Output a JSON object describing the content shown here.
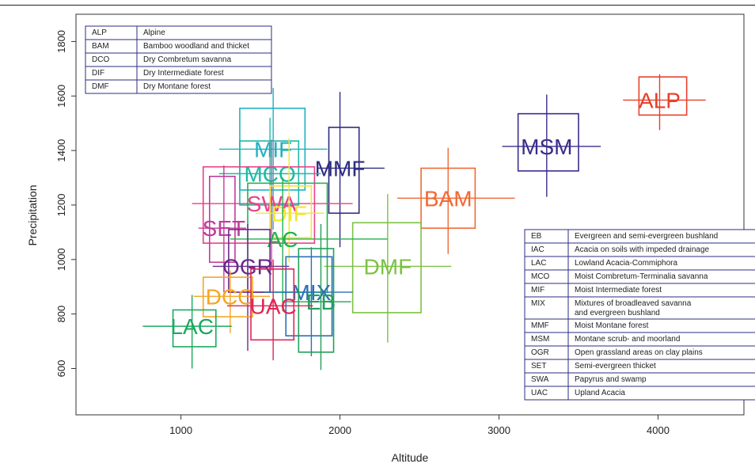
{
  "chart_data": {
    "type": "scatter",
    "xlabel": "Altitude",
    "ylabel": "Precipitation",
    "xlim": [
      340,
      4540
    ],
    "ylim": [
      430,
      1900
    ],
    "xticks": [
      "1000",
      "2000",
      "3000",
      "4000"
    ],
    "yticks": [
      "600",
      "800",
      "1000",
      "1200",
      "1400",
      "1600",
      "1800"
    ],
    "grid": false,
    "legend_placement": "top-left and lower-right tables",
    "points": [
      {
        "code": "ALP",
        "color": "#E8412C",
        "x": 4010,
        "y": 1585,
        "box_x": [
          3880,
          4180
        ],
        "box_y": [
          1530,
          1670
        ],
        "whisker_x": [
          3780,
          4300
        ],
        "whisker_y": [
          1475,
          1680
        ]
      },
      {
        "code": "MSM",
        "color": "#3A2D8C",
        "x": 3300,
        "y": 1415,
        "box_x": [
          3120,
          3500
        ],
        "box_y": [
          1325,
          1535
        ],
        "whisker_x": [
          3020,
          3640
        ],
        "whisker_y": [
          1230,
          1605
        ]
      },
      {
        "code": "BAM",
        "color": "#F06A35",
        "x": 2680,
        "y": 1225,
        "box_x": [
          2510,
          2850
        ],
        "box_y": [
          1115,
          1335
        ],
        "whisker_x": [
          2360,
          3100
        ],
        "whisker_y": [
          1020,
          1410
        ]
      },
      {
        "code": "DMF",
        "color": "#7CC242",
        "x": 2300,
        "y": 975,
        "box_x": [
          2080,
          2510
        ],
        "box_y": [
          805,
          1135
        ],
        "whisker_x": [
          1900,
          2700
        ],
        "whisker_y": [
          695,
          1240
        ]
      },
      {
        "code": "MMF",
        "color": "#2E2C82",
        "x": 2000,
        "y": 1335,
        "box_x": [
          1930,
          2120
        ],
        "box_y": [
          1170,
          1485
        ],
        "whisker_x": [
          1860,
          2280
        ],
        "whisker_y": [
          1045,
          1615
        ]
      },
      {
        "code": "MIF",
        "color": "#1FB0C2",
        "x": 1580,
        "y": 1405,
        "box_x": [
          1370,
          1780
        ],
        "box_y": [
          1255,
          1555
        ],
        "whisker_x": [
          1240,
          1920
        ],
        "whisker_y": [
          1110,
          1630
        ]
      },
      {
        "code": "MCO",
        "color": "#1EB8A6",
        "x": 1560,
        "y": 1315,
        "box_x": [
          1370,
          1740
        ],
        "box_y": [
          1200,
          1435
        ],
        "whisker_x": [
          1240,
          1880
        ],
        "whisker_y": [
          1100,
          1520
        ]
      },
      {
        "code": "SWA",
        "color": "#E8418A",
        "x": 1570,
        "y": 1205,
        "box_x": [
          1140,
          1840
        ],
        "box_y": [
          1060,
          1340
        ],
        "whisker_x": [
          1070,
          2080
        ],
        "whisker_y": [
          960,
          1440
        ]
      },
      {
        "code": "DIF",
        "color": "#F2E530",
        "x": 1680,
        "y": 1170,
        "box_x": [
          1560,
          1820
        ],
        "box_y": [
          1080,
          1270
        ],
        "whisker_x": [
          1470,
          1900
        ],
        "whisker_y": [
          990,
          1445
        ]
      },
      {
        "code": "SET",
        "color": "#C23C9B",
        "x": 1270,
        "y": 1115,
        "box_x": [
          1180,
          1340
        ],
        "box_y": [
          990,
          1305
        ],
        "whisker_x": [
          1110,
          1410
        ],
        "whisker_y": [
          880,
          1345
        ]
      },
      {
        "code": "AC",
        "color": "#22B14C",
        "x": 1640,
        "y": 1075,
        "box_x": [
          1420,
          1920
        ],
        "box_y": [
          880,
          1280
        ],
        "whisker_x": [
          1310,
          2300
        ],
        "whisker_y": [
          810,
          1300
        ]
      },
      {
        "code": "OGR",
        "color": "#6A2A8A",
        "x": 1420,
        "y": 975,
        "box_x": [
          1300,
          1560
        ],
        "box_y": [
          880,
          1110
        ],
        "whisker_x": [
          1200,
          1680
        ],
        "whisker_y": [
          665,
          1130
        ]
      },
      {
        "code": "DCO",
        "color": "#F5A623",
        "x": 1310,
        "y": 865,
        "box_x": [
          1140,
          1450
        ],
        "box_y": [
          790,
          935
        ],
        "whisker_x": [
          1080,
          1560
        ],
        "whisker_y": [
          730,
          960
        ]
      },
      {
        "code": "MIX",
        "color": "#2A6FB8",
        "x": 1820,
        "y": 880,
        "box_x": [
          1660,
          1950
        ],
        "box_y": [
          720,
          1010
        ],
        "whisker_x": [
          1520,
          2080
        ],
        "whisker_y": [
          645,
          1045
        ]
      },
      {
        "code": "EB",
        "color": "#22A05A",
        "x": 1880,
        "y": 845,
        "box_x": [
          1740,
          1960
        ],
        "box_y": [
          660,
          1040
        ],
        "whisker_x": [
          1650,
          2070
        ],
        "whisker_y": [
          595,
          1130
        ]
      },
      {
        "code": "UAC",
        "color": "#E02654",
        "x": 1580,
        "y": 830,
        "box_x": [
          1440,
          1710
        ],
        "box_y": [
          705,
          965
        ],
        "whisker_x": [
          1290,
          1830
        ],
        "whisker_y": [
          630,
          1000
        ]
      },
      {
        "code": "LAC",
        "color": "#1BAA5E",
        "x": 1070,
        "y": 755,
        "box_x": [
          950,
          1220
        ],
        "box_y": [
          680,
          815
        ],
        "whisker_x": [
          760,
          1320
        ],
        "whisker_y": [
          600,
          870
        ]
      }
    ]
  },
  "legend_top": [
    [
      "ALP",
      "Alpine"
    ],
    [
      "BAM",
      "Bamboo woodland and thicket"
    ],
    [
      "DCO",
      "Dry Combretum savanna"
    ],
    [
      "DIF",
      "Dry Intermediate forest"
    ],
    [
      "DMF",
      "Dry Montane forest"
    ]
  ],
  "legend_bottom": [
    [
      "EB",
      "Evergreen and semi-evergreen bushland"
    ],
    [
      "IAC",
      "Acacia on soils with impeded drainage"
    ],
    [
      "LAC",
      "Lowland Acacia-Commiphora"
    ],
    [
      "MCO",
      "Moist Combretum-Terminalia savanna"
    ],
    [
      "MIF",
      "Moist Intermediate forest"
    ],
    [
      "MIX",
      "Mixtures of broadleaved savanna  and evergreen bushland"
    ],
    [
      "MMF",
      "Moist Montane forest"
    ],
    [
      "MSM",
      "Montane scrub- and moorland"
    ],
    [
      "OGR",
      "Open grassland areas on clay plains"
    ],
    [
      "SET",
      "Semi-evergreen thicket"
    ],
    [
      "SWA",
      "Papyrus and swamp"
    ],
    [
      "UAC",
      "Upland Acacia"
    ]
  ]
}
